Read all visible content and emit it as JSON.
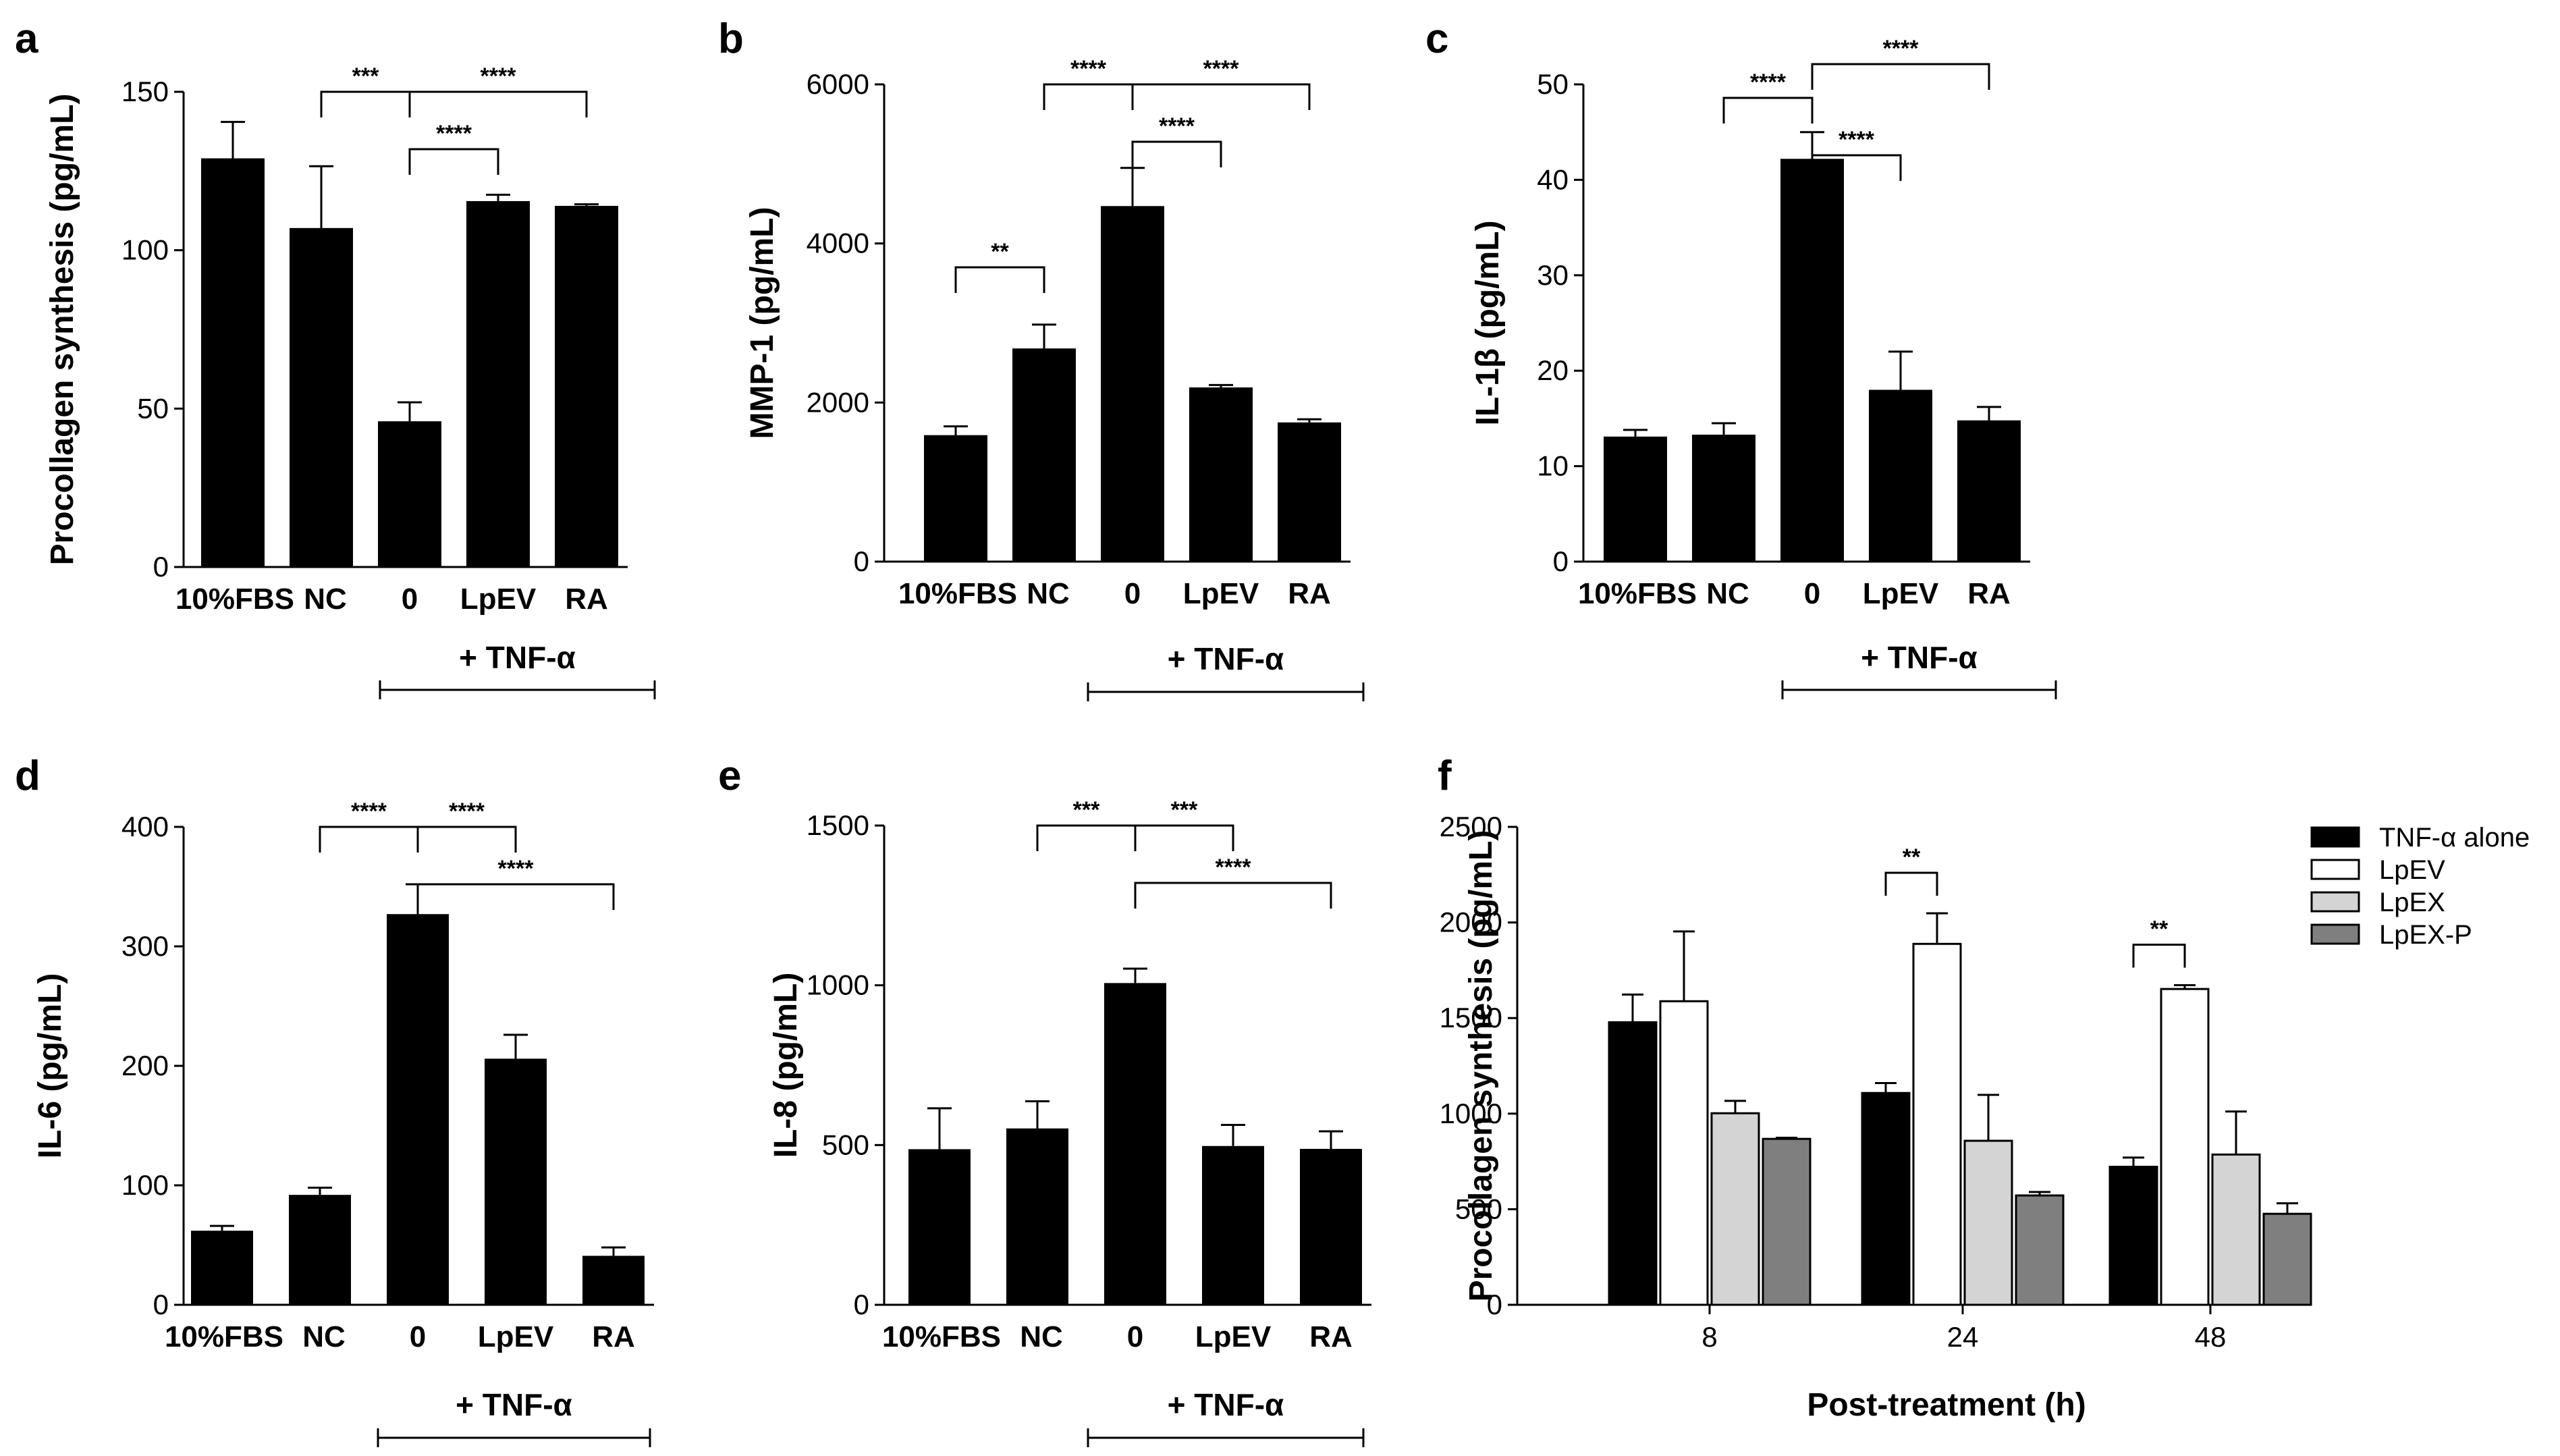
{
  "chart_data": [
    {
      "panel": "a",
      "type": "bar",
      "categories": [
        "10%FBS",
        "NC",
        "0",
        "LpEV",
        "RA"
      ],
      "values": [
        129,
        107,
        46,
        115.5,
        114
      ],
      "errors": [
        11.5,
        19.5,
        6,
        2,
        0.5
      ],
      "ylabel": "Procollagen synthesis (pg/mL)",
      "ylim": [
        0,
        150
      ],
      "yticks": [
        "0",
        "50",
        "100",
        "150"
      ],
      "group_label": "+ TNF-α",
      "significance": [
        {
          "from": 1,
          "to": 2,
          "label": "***",
          "level": 0
        },
        {
          "from": 2,
          "to": 4,
          "label": "****",
          "level": 0
        },
        {
          "from": 2,
          "to": 3,
          "label": "****",
          "level": 1
        }
      ]
    },
    {
      "panel": "b",
      "type": "bar",
      "categories": [
        "10%FBS",
        "NC",
        "0",
        "LpEV",
        "RA"
      ],
      "values": [
        1590,
        2680,
        4470,
        2190,
        1750
      ],
      "errors": [
        110,
        300,
        480,
        30,
        40
      ],
      "ylabel": "MMP-1 (pg/mL)",
      "ylim": [
        0,
        6000
      ],
      "yticks": [
        "0",
        "2000",
        "4000",
        "6000"
      ],
      "group_label": "+ TNF-α",
      "significance": [
        {
          "from": 0,
          "to": 1,
          "label": "**",
          "level": 1
        },
        {
          "from": 1,
          "to": 2,
          "label": "****",
          "level": 0
        },
        {
          "from": 2,
          "to": 4,
          "label": "****",
          "level": 0
        },
        {
          "from": 2,
          "to": 3,
          "label": "****",
          "level": 1
        }
      ]
    },
    {
      "panel": "c",
      "type": "bar",
      "categories": [
        "10%FBS",
        "NC",
        "0",
        "LpEV",
        "RA"
      ],
      "values": [
        13.1,
        13.3,
        42.2,
        18,
        14.8
      ],
      "errors": [
        0.7,
        1.2,
        2.8,
        4,
        1.4
      ],
      "ylabel": "IL-1β (pg/mL)",
      "ylim": [
        0,
        50
      ],
      "yticks": [
        "0",
        "10",
        "20",
        "30",
        "40",
        "50"
      ],
      "group_label": "+ TNF-α",
      "significance": [
        {
          "from": 1,
          "to": 2,
          "label": "****",
          "level": 0
        },
        {
          "from": 2,
          "to": 3,
          "label": "****",
          "level": 1
        },
        {
          "from": 2,
          "to": 4,
          "label": "****",
          "level": 2
        }
      ]
    },
    {
      "panel": "d",
      "type": "bar",
      "categories": [
        "10%FBS",
        "NC",
        "0",
        "LpEV",
        "RA"
      ],
      "values": [
        62,
        92,
        327,
        206,
        41
      ],
      "errors": [
        4,
        6,
        25,
        20,
        7
      ],
      "ylabel": "IL-6 (pg/mL)",
      "ylim": [
        0,
        400
      ],
      "yticks": [
        "0",
        "100",
        "200",
        "300",
        "400"
      ],
      "group_label": "+ TNF-α",
      "significance": [
        {
          "from": 1,
          "to": 2,
          "label": "****",
          "level": 0
        },
        {
          "from": 2,
          "to": 3,
          "label": "****",
          "level": 0
        },
        {
          "from": 2,
          "to": 4,
          "label": "****",
          "level": 1
        }
      ]
    },
    {
      "panel": "e",
      "type": "bar",
      "categories": [
        "10%FBS",
        "NC",
        "0",
        "LpEV",
        "RA"
      ],
      "values": [
        487,
        552,
        1007,
        497,
        488
      ],
      "errors": [
        128,
        85,
        45,
        66,
        55
      ],
      "ylabel": "IL-8 (pg/mL)",
      "ylim": [
        0,
        1500
      ],
      "yticks": [
        "0",
        "500",
        "1000",
        "1500"
      ],
      "group_label": "+ TNF-α",
      "significance": [
        {
          "from": 1,
          "to": 2,
          "label": "***",
          "level": 0
        },
        {
          "from": 2,
          "to": 3,
          "label": "***",
          "level": 0
        },
        {
          "from": 2,
          "to": 4,
          "label": "****",
          "level": 1
        }
      ]
    },
    {
      "panel": "f",
      "type": "bar",
      "categories": [
        "8",
        "24",
        "48"
      ],
      "series": [
        {
          "name": "TNF-α alone",
          "color": "#000000",
          "values": [
            1478,
            1108,
            722
          ],
          "errors": [
            145,
            52,
            48
          ]
        },
        {
          "name": "LpEV",
          "color": "#ffffff",
          "values": [
            1588,
            1888,
            1652
          ],
          "errors": [
            365,
            160,
            20
          ]
        },
        {
          "name": "LpEX",
          "color": "#d4d4d4",
          "values": [
            1002,
            858,
            786
          ],
          "errors": [
            65,
            240,
            225
          ]
        },
        {
          "name": "LpEX-P",
          "color": "#7f7f7f",
          "values": [
            868,
            572,
            476
          ],
          "errors": [
            6,
            18,
            55
          ]
        }
      ],
      "xlabel": "Post-treatment (h)",
      "ylabel": "Procollagen synthesis (pg/mL)",
      "ylim": [
        0,
        2500
      ],
      "yticks": [
        "0",
        "500",
        "1000",
        "1500",
        "2000",
        "2500"
      ],
      "legend": "top-right",
      "significance": [
        {
          "category": 1,
          "series_from": 0,
          "series_to": 1,
          "label": "**"
        },
        {
          "category": 2,
          "series_from": 0,
          "series_to": 1,
          "label": "**"
        }
      ]
    }
  ]
}
